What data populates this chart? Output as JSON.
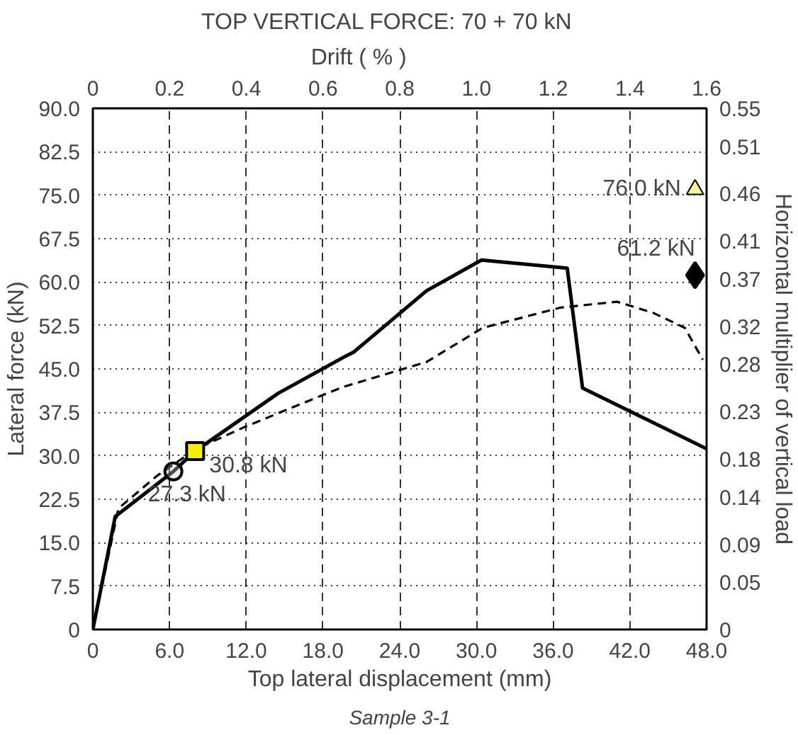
{
  "chart_data": {
    "type": "line",
    "title": "TOP  VERTICAL  FORCE:  70 + 70  kN",
    "x2label": "Drift              ( % )",
    "xlabel": "Top lateral displacement (mm)",
    "ylabel": "Lateral force (kN)",
    "y2label": "Horizontal multiplier of vertical load",
    "xlim": [
      0,
      48
    ],
    "xticks": [
      0,
      {
        "value": 6,
        "label": "6.0"
      },
      {
        "value": 12,
        "label": "12.0"
      },
      {
        "value": 18,
        "label": "18.0"
      },
      {
        "value": 24,
        "label": "24.0"
      },
      {
        "value": 30,
        "label": "30.0"
      },
      {
        "value": 36,
        "label": "36.0"
      },
      {
        "value": 42,
        "label": "42.0"
      },
      {
        "value": 48,
        "label": "48.0"
      }
    ],
    "x2lim": [
      0,
      1.6
    ],
    "x2ticks": [
      0,
      0.2,
      0.4,
      0.6,
      0.8,
      {
        "value": 1,
        "label": "1.0"
      },
      1.2,
      1.4,
      1.6
    ],
    "ylim": [
      0,
      90
    ],
    "yticks": [
      0,
      7.5,
      {
        "value": 15,
        "label": "15.0"
      },
      22.5,
      {
        "value": 30,
        "label": "30.0"
      },
      37.5,
      {
        "value": 45,
        "label": "45.0"
      },
      52.5,
      {
        "value": 60,
        "label": "60.0"
      },
      67.5,
      {
        "value": 75,
        "label": "75.0"
      },
      82.5,
      {
        "value": 90,
        "label": "90.0"
      }
    ],
    "y2lim": [
      0,
      0.55
    ],
    "y2ticks": [
      0,
      0.05,
      0.09,
      0.14,
      0.18,
      0.23,
      0.28,
      0.32,
      0.37,
      0.41,
      0.46,
      0.51,
      0.55
    ],
    "grid": true,
    "series": [
      {
        "color": "#000000",
        "line_style": "solid",
        "x": [
          0,
          1.75,
          6.3,
          8.0,
          14.5,
          19.6,
          20.4,
          26.1,
          30.4,
          37.1,
          38.3,
          48.0
        ],
        "values": [
          0,
          19.5,
          27.3,
          30.8,
          40.8,
          47.0,
          47.9,
          58.5,
          63.8,
          62.4,
          41.7,
          31.2
        ]
      },
      {
        "color": "#000000",
        "line_style": "dashed",
        "x": [
          0,
          2.0,
          5.0,
          8.1,
          11.9,
          18.1,
          19.6,
          26.1,
          30.5,
          36.6,
          41.0,
          43.8,
          46.3,
          47.7
        ],
        "values": [
          0,
          20.9,
          26.5,
          31.2,
          35.0,
          40.6,
          41.9,
          46.2,
          52.1,
          55.6,
          56.6,
          54.7,
          52.1,
          46.6
        ]
      },
      {
        "type": "scatter",
        "marker": "circle",
        "color": "#d0d0d0",
        "x": [
          6.3
        ],
        "values": [
          27.3
        ]
      },
      {
        "type": "scatter",
        "marker": "square",
        "color": "#f5f000",
        "x": [
          8.0
        ],
        "values": [
          30.8
        ]
      },
      {
        "type": "scatter",
        "marker": "triangle",
        "color": "#f5f5a0",
        "x": [
          47.1
        ],
        "values": [
          76.0
        ]
      },
      {
        "type": "scatter",
        "marker": "diamond",
        "color": "#000000",
        "x": [
          47.1
        ],
        "values": [
          61.2
        ]
      }
    ],
    "annotations": [
      {
        "text": "30.8 kN",
        "x": 8.0,
        "y": 30.8
      },
      {
        "text": "27.3 kN",
        "x": 6.3,
        "y": 27.3
      },
      {
        "text": "76.0 kN",
        "x": 47.1,
        "y": 76.0
      },
      {
        "text": "61.2 kN",
        "x": 47.1,
        "y": 61.2
      },
      "Sample 3-1"
    ]
  }
}
